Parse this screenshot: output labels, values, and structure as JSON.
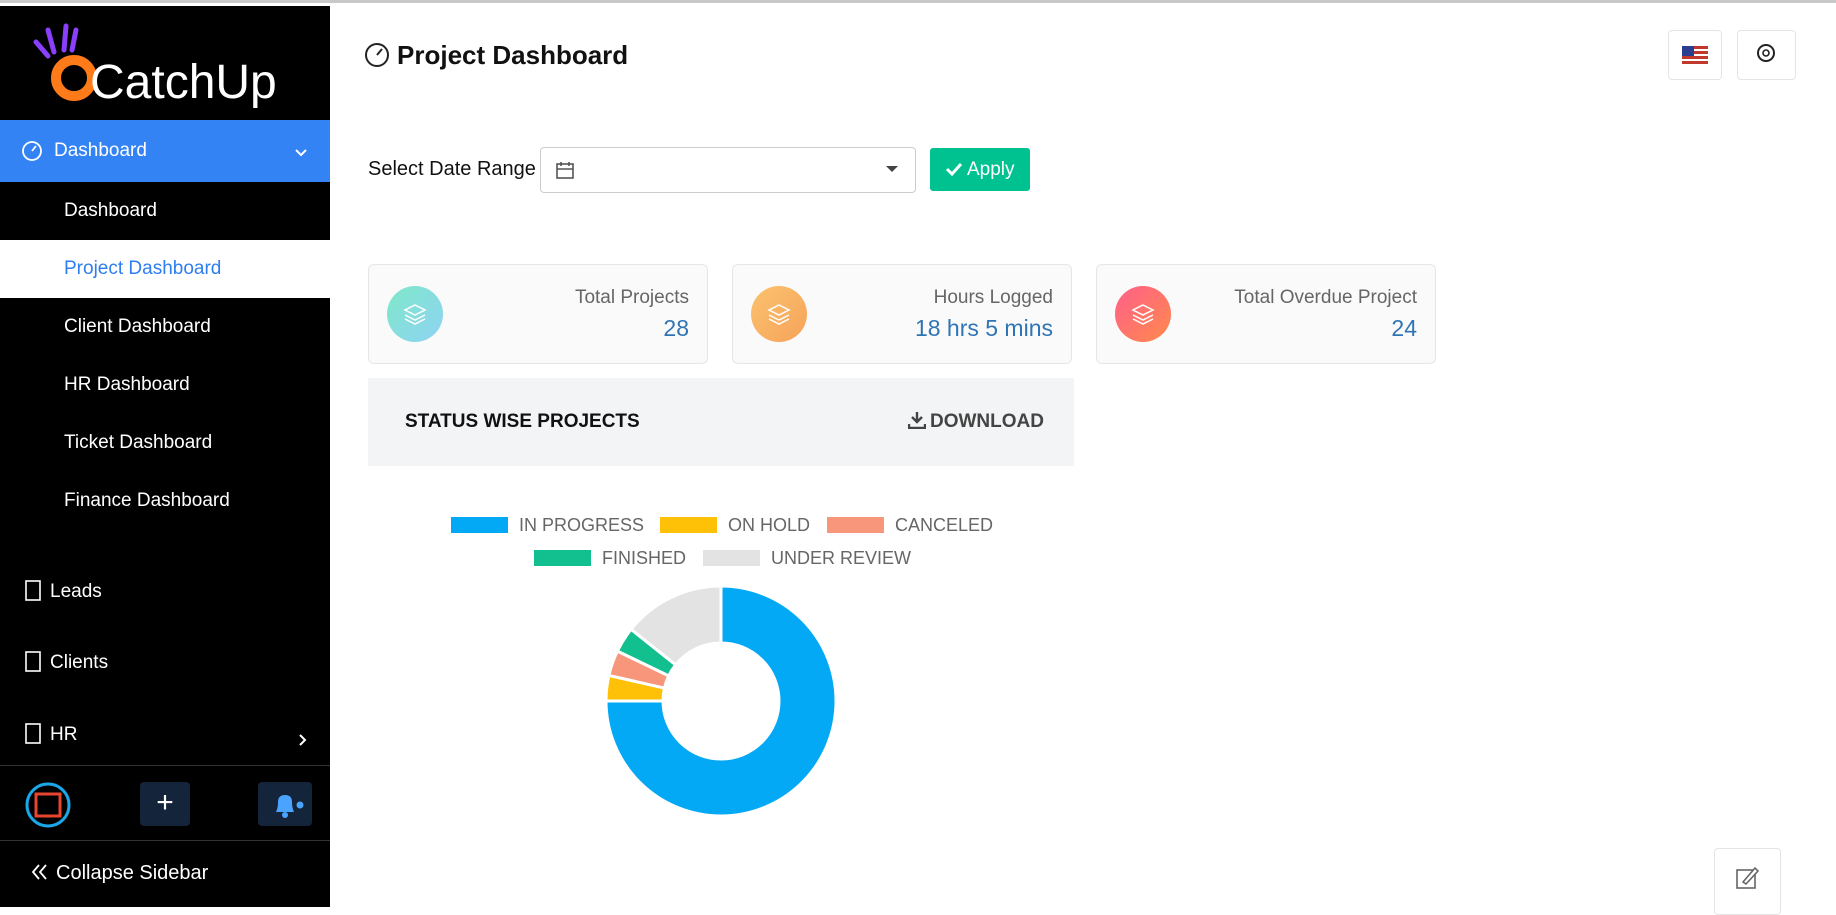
{
  "logo": {
    "text": "CatchUp"
  },
  "sidebar": {
    "menu": "Dashboard",
    "submenu": [
      "Dashboard",
      "Project Dashboard",
      "Client Dashboard",
      "HR Dashboard",
      "Ticket Dashboard",
      "Finance Dashboard"
    ],
    "items": [
      "Leads",
      "Clients",
      "HR"
    ],
    "collapse": "Collapse Sidebar"
  },
  "header": {
    "title": "Project Dashboard"
  },
  "filters": {
    "label": "Select Date Range",
    "apply": "Apply"
  },
  "cards": [
    {
      "label": "Total Projects",
      "value": "28"
    },
    {
      "label": "Hours Logged",
      "value": "18 hrs 5 mins"
    },
    {
      "label": "Total Overdue Project",
      "value": "24"
    }
  ],
  "panel": {
    "download": "DOWNLOAD"
  },
  "chart_data": {
    "type": "donut",
    "title": "STATUS WISE PROJECTS",
    "categories": [
      "IN PROGRESS",
      "ON HOLD",
      "CANCELED",
      "FINISHED",
      "UNDER REVIEW"
    ],
    "values": [
      21,
      1,
      1,
      1,
      4
    ],
    "colors": [
      "#03a9f4",
      "#ffc107",
      "#f8967c",
      "#12bf8e",
      "#e3e3e3"
    ]
  }
}
